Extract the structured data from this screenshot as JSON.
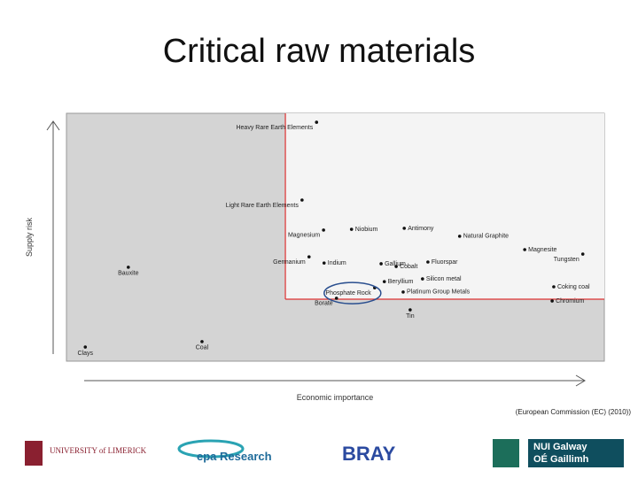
{
  "chart_data": {
    "type": "scatter",
    "title": "Critical raw materials",
    "x_label": "Economic importance",
    "y_label": "Supply risk",
    "source": "(European Commission (EC) (2010))",
    "xlim": [
      0,
      10
    ],
    "ylim": [
      0,
      10
    ],
    "x_threshold": 4.07,
    "y_threshold": 2.5,
    "color": "#111",
    "points": [
      {
        "name": "Heavy Rare Earth Elements",
        "x": 4.65,
        "y": 9.64
      },
      {
        "name": "Light Rare Earth Elements",
        "x": 4.38,
        "y": 6.5
      },
      {
        "name": "Niobium",
        "x": 5.3,
        "y": 5.32
      },
      {
        "name": "Magnesium",
        "x": 4.78,
        "y": 5.29
      },
      {
        "name": "Antimony",
        "x": 6.28,
        "y": 5.36
      },
      {
        "name": "Natural Graphite",
        "x": 7.31,
        "y": 5.04
      },
      {
        "name": "Magnesite",
        "x": 8.52,
        "y": 4.5
      },
      {
        "name": "Tungsten",
        "x": 9.6,
        "y": 4.32
      },
      {
        "name": "Germanium",
        "x": 4.51,
        "y": 4.21
      },
      {
        "name": "Indium",
        "x": 4.79,
        "y": 3.96
      },
      {
        "name": "Gallium",
        "x": 5.85,
        "y": 3.93
      },
      {
        "name": "Cobalt",
        "x": 6.13,
        "y": 3.82
      },
      {
        "name": "Fluorspar",
        "x": 6.72,
        "y": 4.0
      },
      {
        "name": "Beryllium",
        "x": 5.91,
        "y": 3.21
      },
      {
        "name": "Silicon metal",
        "x": 6.62,
        "y": 3.32
      },
      {
        "name": "Phosphate Rock",
        "x": 5.73,
        "y": 2.96
      },
      {
        "name": "Platinum Group Metals",
        "x": 6.26,
        "y": 2.79
      },
      {
        "name": "Coking coal",
        "x": 9.06,
        "y": 3.0
      },
      {
        "name": "Chromium",
        "x": 9.03,
        "y": 2.43
      },
      {
        "name": "Borate",
        "x": 5.02,
        "y": 2.54
      },
      {
        "name": "Bauxite",
        "x": 1.15,
        "y": 3.79
      },
      {
        "name": "Tin",
        "x": 6.39,
        "y": 2.07
      },
      {
        "name": "Coal",
        "x": 2.52,
        "y": 0.79
      },
      {
        "name": "Clays",
        "x": 0.35,
        "y": 0.57
      }
    ]
  },
  "logos": {
    "limerick": "UNIVERSITY of LIMERICK",
    "epa": "epa Research",
    "bray": "BRAY",
    "galway": "NUI Galway",
    "galway_irish": "OÉ Gaillimh"
  }
}
